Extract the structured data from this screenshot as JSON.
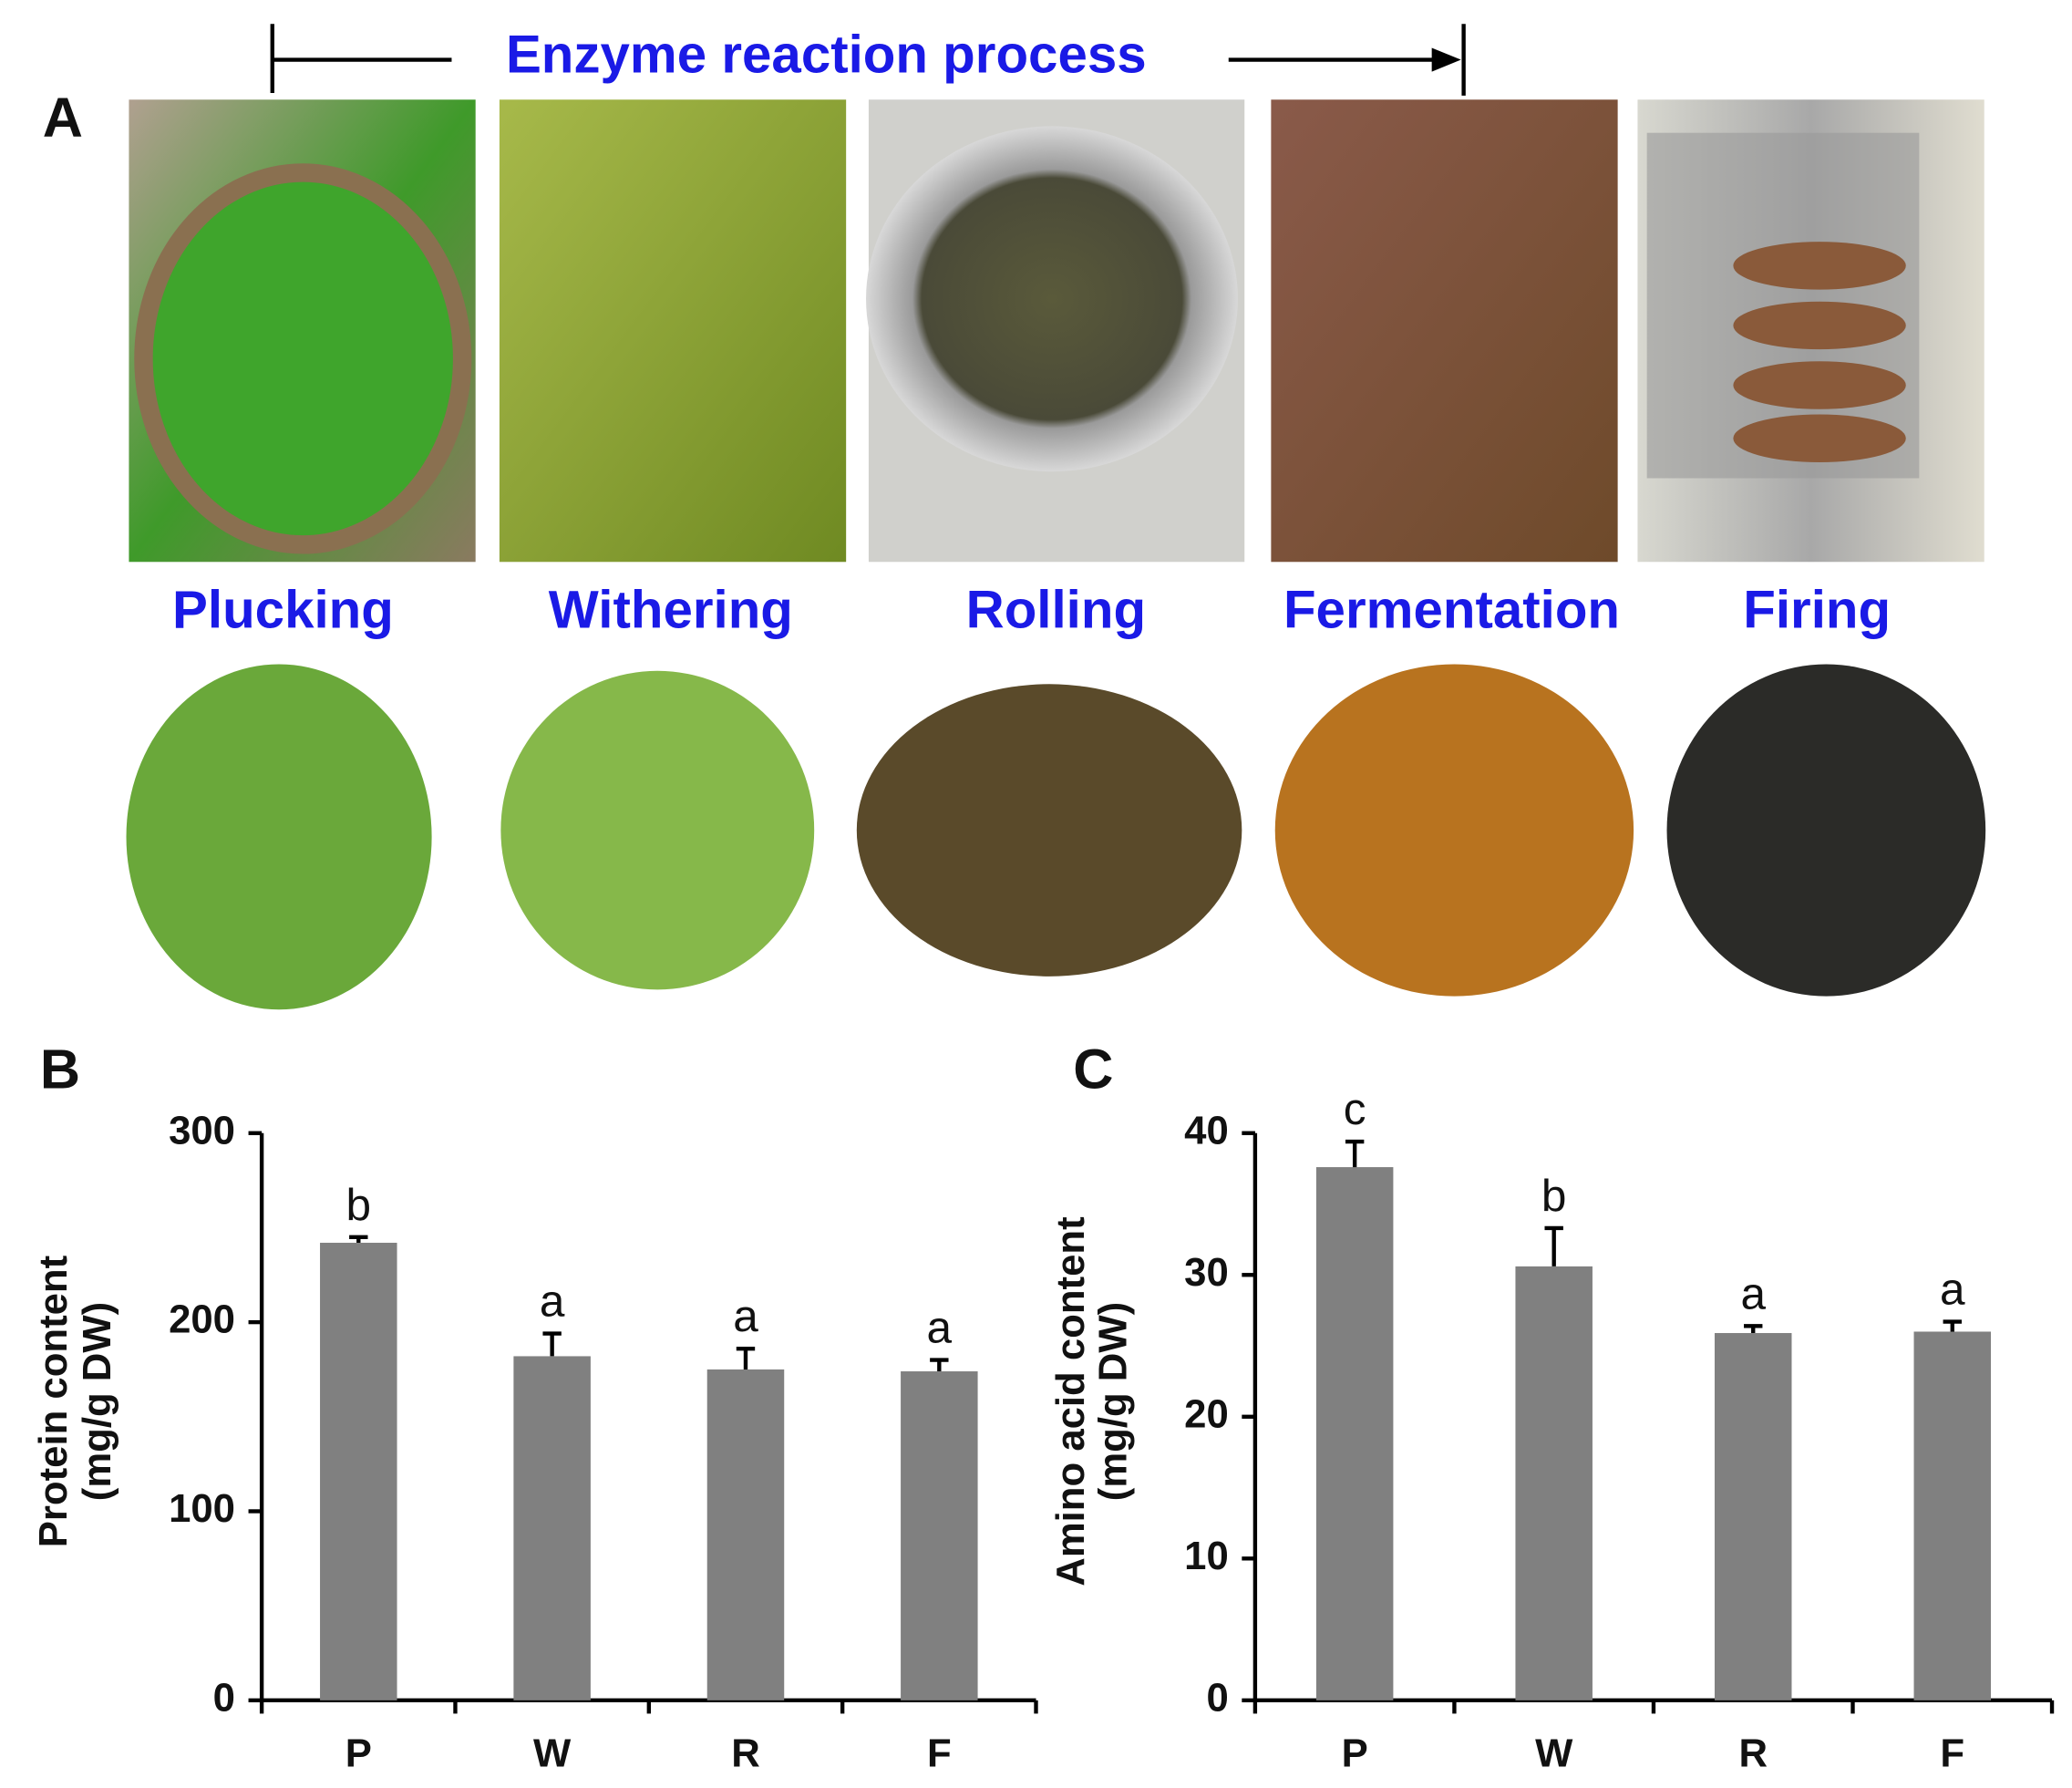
{
  "panel_a": {
    "label": "A",
    "header": "Enzyme reaction process",
    "steps": [
      "Plucking",
      "Withering",
      "Rolling",
      "Fermentation",
      "Firing"
    ]
  },
  "chart_data": [
    {
      "type": "bar",
      "panel_label": "B",
      "ylabel": [
        "Protein content",
        "(mg/g DW)"
      ],
      "categories": [
        "P",
        "W",
        "R",
        "F"
      ],
      "values": [
        242,
        182,
        175,
        174
      ],
      "errors": [
        3,
        12,
        11,
        6
      ],
      "annotations": [
        "b",
        "a",
        "a",
        "a"
      ],
      "color": "#808080",
      "ylim": [
        0,
        300
      ],
      "yticks": [
        0,
        100,
        200,
        300
      ]
    },
    {
      "type": "bar",
      "panel_label": "C",
      "ylabel": [
        "Amino acid content",
        "(mg/g DW)"
      ],
      "categories": [
        "P",
        "W",
        "R",
        "F"
      ],
      "values": [
        37.6,
        30.6,
        25.9,
        26.0
      ],
      "errors": [
        1.8,
        2.7,
        0.5,
        0.7
      ],
      "annotations": [
        "c",
        "b",
        "a",
        "a"
      ],
      "color": "#808080",
      "ylim": [
        0,
        40
      ],
      "yticks": [
        0,
        10,
        20,
        30,
        40
      ]
    }
  ]
}
